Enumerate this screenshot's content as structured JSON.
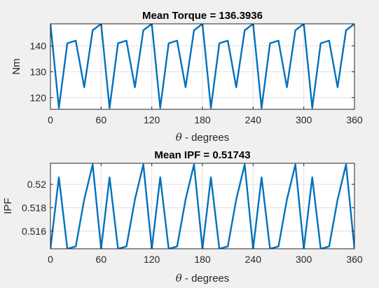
{
  "chart_data": [
    {
      "type": "line",
      "title": "Mean Torque = 136.3936",
      "xlabel_symbol": "θ",
      "xlabel_text": " - degrees",
      "ylabel": "Nm",
      "xlim": [
        0,
        360
      ],
      "ylim": [
        115.5,
        148.5
      ],
      "xticks": [
        0,
        60,
        120,
        180,
        240,
        300,
        360
      ],
      "yticks": [
        120,
        130,
        140
      ],
      "grid": true,
      "color": "#0072bd",
      "x": [
        0,
        10,
        20,
        30,
        40,
        50,
        60,
        70,
        80,
        90,
        100,
        110,
        120,
        130,
        140,
        150,
        160,
        170,
        180,
        190,
        200,
        210,
        220,
        230,
        240,
        250,
        260,
        270,
        280,
        290,
        300,
        310,
        320,
        330,
        340,
        350,
        360
      ],
      "y": [
        148.5,
        116,
        141,
        142,
        124,
        146,
        148.5,
        116,
        141,
        142,
        124,
        146,
        148.5,
        116,
        141,
        142,
        124,
        146,
        148.5,
        116,
        141,
        142,
        124,
        146,
        148.5,
        116,
        141,
        142,
        124,
        146,
        148.5,
        116,
        141,
        142,
        124,
        146,
        148.5
      ]
    },
    {
      "type": "line",
      "title": "Mean IPF = 0.51743",
      "xlabel_symbol": "θ",
      "xlabel_text": " - degrees",
      "ylabel": "IPF",
      "xlim": [
        0,
        360
      ],
      "ylim": [
        0.5145,
        0.5218
      ],
      "xticks": [
        0,
        60,
        120,
        180,
        240,
        300,
        360
      ],
      "yticks": [
        0.516,
        0.518,
        0.52
      ],
      "ytick_labels": [
        "0.516",
        "0.518",
        "0.52"
      ],
      "grid": true,
      "color": "#0072bd",
      "x": [
        0,
        10,
        20,
        30,
        40,
        50,
        60,
        70,
        80,
        90,
        100,
        110,
        120,
        130,
        140,
        150,
        160,
        170,
        180,
        190,
        200,
        210,
        220,
        230,
        240,
        250,
        260,
        270,
        280,
        290,
        300,
        310,
        320,
        330,
        340,
        350,
        360
      ],
      "y": [
        0.5145,
        0.5206,
        0.5145,
        0.5147,
        0.5187,
        0.5217,
        0.5145,
        0.5206,
        0.5145,
        0.5147,
        0.5187,
        0.5217,
        0.5145,
        0.5206,
        0.5145,
        0.5147,
        0.5187,
        0.5217,
        0.5145,
        0.5206,
        0.5145,
        0.5147,
        0.5187,
        0.5217,
        0.5145,
        0.5206,
        0.5145,
        0.5147,
        0.5187,
        0.5217,
        0.5145,
        0.5206,
        0.5145,
        0.5147,
        0.5187,
        0.5217,
        0.5145
      ]
    }
  ]
}
